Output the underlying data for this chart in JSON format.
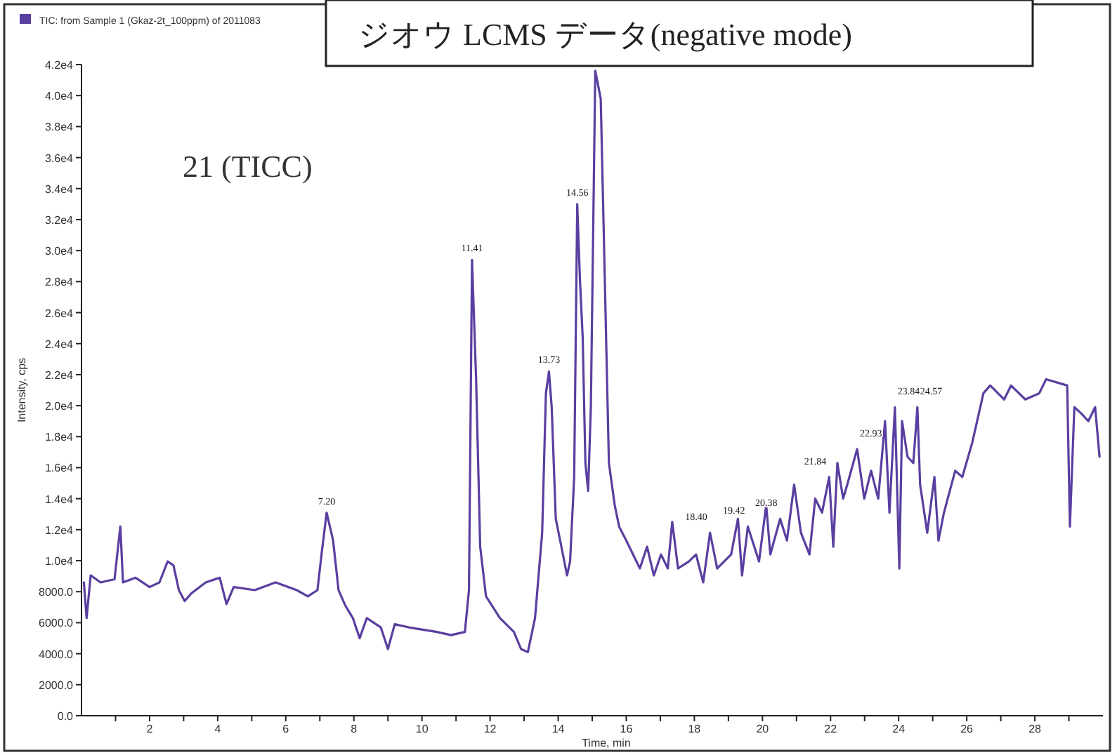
{
  "chart_data": {
    "type": "line",
    "title": "ジオウ LCMS データ(negative mode)",
    "xlabel": "Time, min",
    "ylabel": "Intensity, cps",
    "legend": "top left",
    "marker": "none",
    "line_style": "solid",
    "grid": false,
    "xlim": [
      0,
      30
    ],
    "ylim": [
      0,
      42000
    ],
    "xticks": [
      {
        "value": 1,
        "label": null
      },
      2,
      {
        "value": 3,
        "label": null
      },
      4,
      {
        "value": 5,
        "label": null
      },
      6,
      {
        "value": 7,
        "label": null
      },
      8,
      {
        "value": 9,
        "label": null
      },
      10,
      {
        "value": 11,
        "label": null
      },
      12,
      {
        "value": 13,
        "label": null
      },
      14,
      {
        "value": 15,
        "label": null
      },
      16,
      {
        "value": 17,
        "label": null
      },
      18,
      {
        "value": 19,
        "label": null
      },
      20,
      {
        "value": 21,
        "label": null
      },
      22,
      {
        "value": 23,
        "label": null
      },
      24,
      {
        "value": 25,
        "label": null
      },
      26,
      {
        "value": 27,
        "label": null
      },
      28,
      {
        "value": 29,
        "label": null
      }
    ],
    "yticks": [
      {
        "value": 0,
        "label": "0.0"
      },
      {
        "value": 2000,
        "label": "2000.0"
      },
      {
        "value": 4000,
        "label": "4000.0"
      },
      {
        "value": 6000,
        "label": "6000.0"
      },
      {
        "value": 8000,
        "label": "8000.0"
      },
      {
        "value": 10000,
        "label": "1.0e4"
      },
      {
        "value": 12000,
        "label": "1.2e4"
      },
      {
        "value": 14000,
        "label": "1.4e4"
      },
      {
        "value": 16000,
        "label": "1.6e4"
      },
      {
        "value": 18000,
        "label": "1.8e4"
      },
      {
        "value": 20000,
        "label": "2.0e4"
      },
      {
        "value": 22000,
        "label": "2.2e4"
      },
      {
        "value": 24000,
        "label": "2.4e4"
      },
      {
        "value": 26000,
        "label": "2.6e4"
      },
      {
        "value": 28000,
        "label": "2.8e4"
      },
      {
        "value": 30000,
        "label": "3.0e4"
      },
      {
        "value": 32000,
        "label": "3.2e4"
      },
      {
        "value": 34000,
        "label": "3.4e4"
      },
      {
        "value": 36000,
        "label": "3.6e4"
      },
      {
        "value": 38000,
        "label": "3.8e4"
      },
      {
        "value": 40000,
        "label": "4.0e4"
      },
      {
        "value": 42000,
        "label": "4.2e4"
      }
    ],
    "series": [
      {
        "name": "TIC: from Sample 1 (Gkaz-2t_100ppm) of 2011083",
        "color": "#5a3fa0",
        "x": [
          0.07,
          0.15,
          0.27,
          0.56,
          0.97,
          1.14,
          1.22,
          1.59,
          2.0,
          2.29,
          2.53,
          2.7,
          2.86,
          3.03,
          3.23,
          3.65,
          4.06,
          4.26,
          4.47,
          5.09,
          5.7,
          6.32,
          6.65,
          6.93,
          7.05,
          7.2,
          7.39,
          7.55,
          7.75,
          7.97,
          8.17,
          8.38,
          8.79,
          9.0,
          9.2,
          9.61,
          10.44,
          10.85,
          11.26,
          11.38,
          11.47,
          11.59,
          11.71,
          11.88,
          12.29,
          12.7,
          12.91,
          13.11,
          13.32,
          13.53,
          13.64,
          13.73,
          13.81,
          13.93,
          14.14,
          14.26,
          14.35,
          14.47,
          14.56,
          14.64,
          14.72,
          14.8,
          14.88,
          14.96,
          15.09,
          15.25,
          15.37,
          15.49,
          15.66,
          15.79,
          16.0,
          16.2,
          16.4,
          16.61,
          16.81,
          17.02,
          17.22,
          17.35,
          17.52,
          17.84,
          18.05,
          18.26,
          18.46,
          18.67,
          19.08,
          19.28,
          19.4,
          19.57,
          19.9,
          20.11,
          20.23,
          20.52,
          20.72,
          20.93,
          21.13,
          21.38,
          21.55,
          21.75,
          21.96,
          22.08,
          22.2,
          22.37,
          22.49,
          22.78,
          22.99,
          23.19,
          23.4,
          23.6,
          23.73,
          23.89,
          24.02,
          24.1,
          24.26,
          24.43,
          24.55,
          24.63,
          24.84,
          25.05,
          25.17,
          25.33,
          25.66,
          25.87,
          26.16,
          26.49,
          26.69,
          27.1,
          27.3,
          27.72,
          28.13,
          28.33,
          28.95,
          29.03,
          29.16,
          29.36,
          29.57,
          29.77,
          29.9
        ],
        "values": [
          8600,
          6300,
          9050,
          8600,
          8800,
          12200,
          8600,
          8900,
          8300,
          8600,
          9950,
          9700,
          8100,
          7400,
          7900,
          8600,
          8900,
          7200,
          8300,
          8100,
          8600,
          8100,
          7700,
          8100,
          10400,
          13100,
          11300,
          8100,
          7100,
          6300,
          5000,
          6300,
          5700,
          4300,
          5900,
          5700,
          5400,
          5200,
          5400,
          8100,
          29400,
          21700,
          10900,
          7700,
          6300,
          5400,
          4300,
          4100,
          6300,
          11800,
          20800,
          22200,
          19900,
          12700,
          10400,
          9050,
          9950,
          15400,
          33000,
          28100,
          24400,
          16300,
          14500,
          19900,
          41600,
          39800,
          28100,
          16300,
          13600,
          12200,
          11300,
          10400,
          9500,
          10900,
          9050,
          10400,
          9500,
          12500,
          9500,
          9950,
          10400,
          8600,
          11800,
          9500,
          10400,
          12700,
          9050,
          12200,
          9950,
          13600,
          10400,
          12700,
          11300,
          14900,
          11800,
          10400,
          14000,
          13100,
          15400,
          10900,
          16300,
          14000,
          14900,
          17200,
          14000,
          15800,
          14000,
          19000,
          13100,
          19900,
          9500,
          19000,
          16700,
          16300,
          19900,
          14900,
          11800,
          15400,
          11300,
          13100,
          15800,
          15400,
          17600,
          20800,
          21300,
          20400,
          21300,
          20400,
          20800,
          21700,
          21300,
          12200,
          19900,
          19500,
          19000,
          19900,
          16700
        ]
      }
    ],
    "annotations": [
      "21 (TICC)",
      {
        "text": "7.20",
        "x": 7.2,
        "y": 13100
      },
      {
        "text": "11.41",
        "x": 11.47,
        "y": 29400
      },
      {
        "text": "13.73",
        "x": 13.73,
        "y": 22200
      },
      {
        "text": "14.56",
        "x": 14.56,
        "y": 33000
      },
      {
        "text": "18.40",
        "x": 18.46,
        "y": 11800
      },
      {
        "text": "19.42",
        "x": 19.57,
        "y": 12200
      },
      {
        "text": "20.38",
        "x": 20.52,
        "y": 12700
      },
      {
        "text": "21.84",
        "x": 21.96,
        "y": 15400
      },
      {
        "text": "22.93",
        "x": 22.78,
        "y": 17200
      },
      {
        "text": "23.84",
        "x": 23.89,
        "y": 19900
      },
      {
        "text": "24.57",
        "x": 24.55,
        "y": 19900
      }
    ]
  }
}
